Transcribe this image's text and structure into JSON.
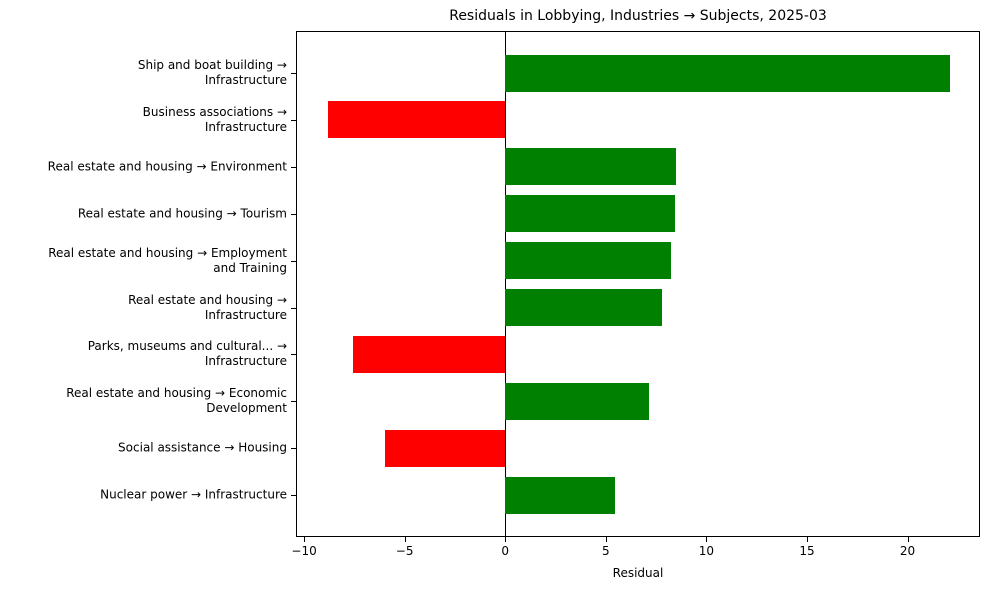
{
  "chart_data": {
    "type": "bar",
    "orientation": "horizontal",
    "title": "Residuals in Lobbying, Industries → Subjects, 2025-03",
    "xlabel": "Residual",
    "ylabel": "",
    "xlim": [
      -10.4,
      23.6
    ],
    "xticks": [
      -10,
      -5,
      0,
      5,
      10,
      15,
      20
    ],
    "xtick_labels": [
      "−10",
      "−5",
      "0",
      "5",
      "10",
      "15",
      "20"
    ],
    "grid": false,
    "legend": null,
    "categories": [
      "Ship and boat building →\nInfrastructure",
      "Business associations →\nInfrastructure",
      "Real estate and housing → Environment",
      "Real estate and housing → Tourism",
      "Real estate and housing → Employment\nand Training",
      "Real estate and housing →\nInfrastructure",
      "Parks, museums and cultural... →\nInfrastructure",
      "Real estate and housing → Economic\nDevelopment",
      "Social assistance → Housing",
      "Nuclear power → Infrastructure"
    ],
    "values": [
      22.1,
      -8.8,
      8.5,
      8.45,
      8.25,
      7.8,
      -7.55,
      7.15,
      -6.0,
      5.45
    ],
    "colors": {
      "positive": "#008000",
      "negative": "#ff0000"
    }
  }
}
